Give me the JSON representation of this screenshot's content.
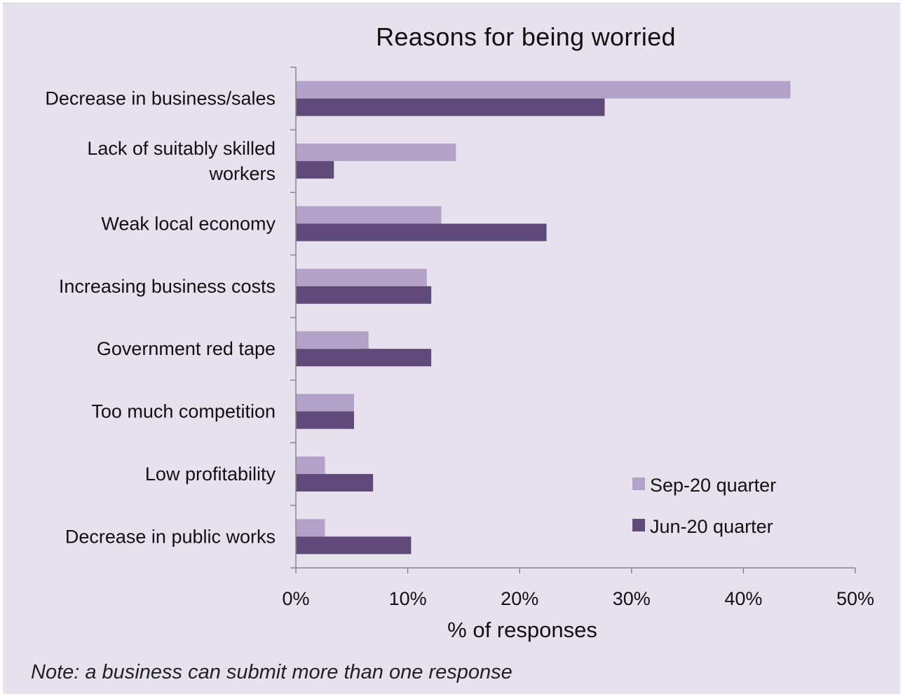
{
  "chart_data": {
    "type": "bar",
    "orientation": "horizontal",
    "title": "Reasons for being worried",
    "xlabel": "% of responses",
    "ylabel": "",
    "xlim": [
      0,
      50
    ],
    "xticks": [
      "0%",
      "10%",
      "20%",
      "30%",
      "40%",
      "50%"
    ],
    "grid": false,
    "legend_position": "bottom-right",
    "categories": [
      [
        "Decrease in business/sales"
      ],
      [
        "Lack of suitably skilled",
        "workers"
      ],
      [
        "Weak local economy"
      ],
      [
        "Increasing business costs"
      ],
      [
        "Government red tape"
      ],
      [
        "Too much competition"
      ],
      [
        "Low profitability"
      ],
      [
        "Decrease in public works"
      ]
    ],
    "series": [
      {
        "name": "Sep-20 quarter",
        "color": "#b3a2c8",
        "values": [
          44.2,
          14.3,
          13.0,
          11.7,
          6.5,
          5.2,
          2.6,
          2.6
        ]
      },
      {
        "name": "Jun-20 quarter",
        "color": "#5f4a7a",
        "values": [
          27.6,
          3.4,
          22.4,
          12.1,
          12.1,
          5.2,
          6.9,
          10.3
        ]
      }
    ]
  },
  "note": "Note: a business can submit more than one response"
}
